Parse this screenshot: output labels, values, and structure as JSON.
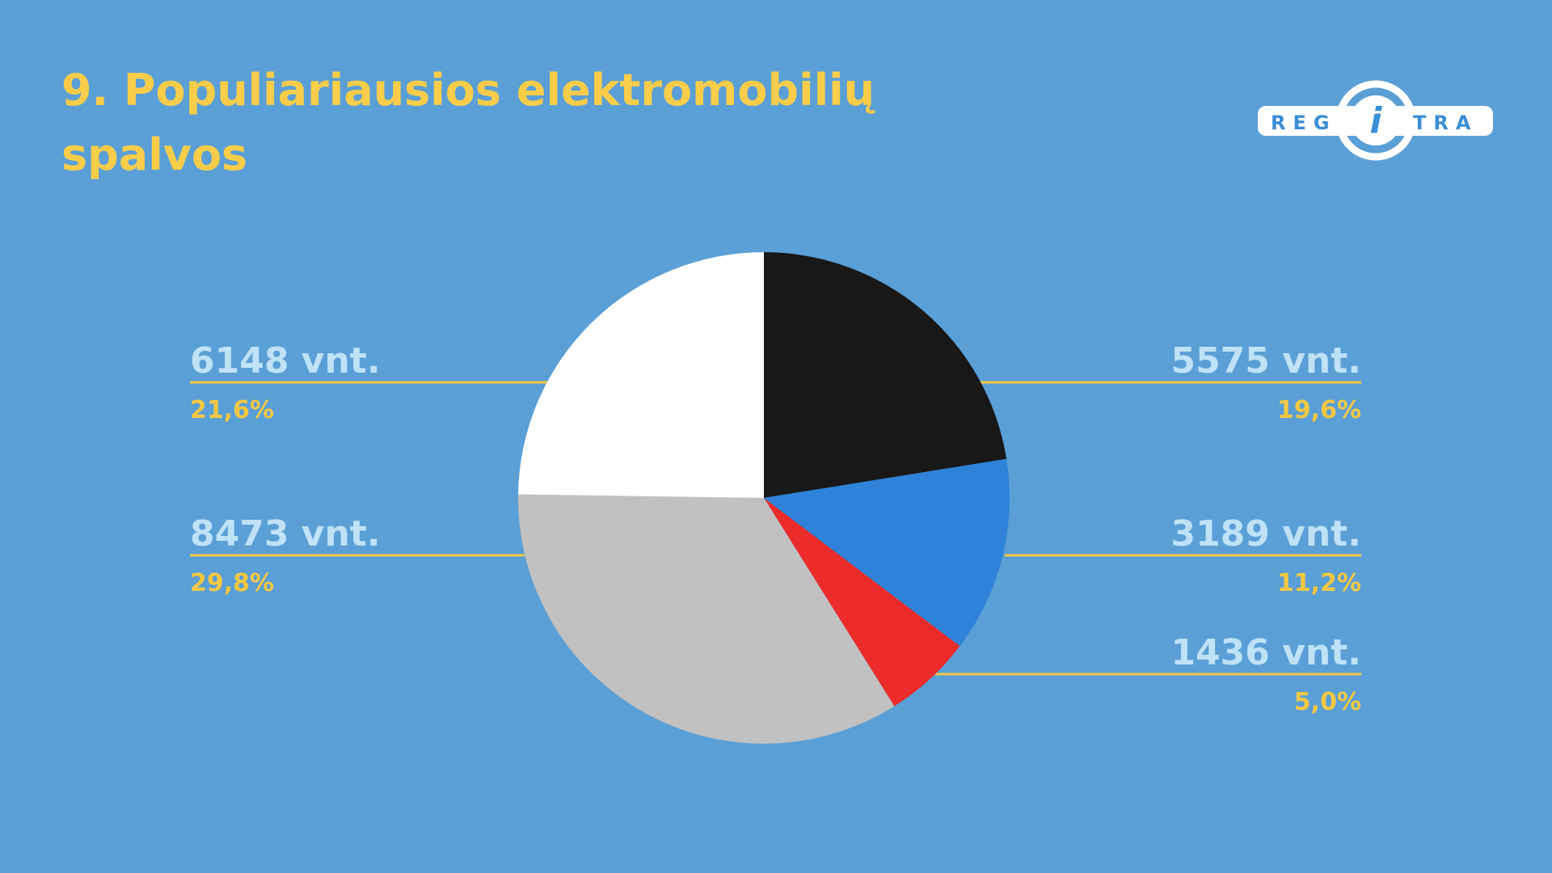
{
  "logo": {
    "left": "REG",
    "middle": "i",
    "right": "TRA"
  },
  "chart_data": {
    "type": "pie",
    "title": "9. Populiariausios elektromobilių spalvos",
    "values": [
      5575,
      3189,
      1436,
      8473,
      6148
    ],
    "value_labels": [
      "5575 vnt.",
      "3189 vnt.",
      "1436 vnt.",
      "8473 vnt.",
      "6148 vnt."
    ],
    "percentage_labels": [
      "19,6%",
      "11,2%",
      "5,0%",
      "29,8%",
      "21,6%"
    ],
    "colors": [
      "#181818",
      "#2e83d9",
      "#ec2b2b",
      "#c1c1c1",
      "#ffffff"
    ]
  }
}
